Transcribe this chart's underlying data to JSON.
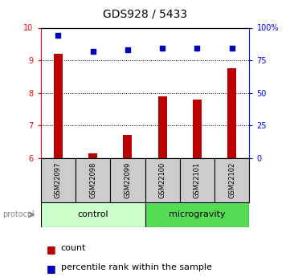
{
  "title": "GDS928 / 5433",
  "samples": [
    "GSM22097",
    "GSM22098",
    "GSM22099",
    "GSM22100",
    "GSM22101",
    "GSM22102"
  ],
  "count_values": [
    9.2,
    6.15,
    6.7,
    7.9,
    7.8,
    8.75
  ],
  "percentile_values": [
    94,
    82,
    83,
    84,
    84,
    84
  ],
  "ylim_left": [
    6,
    10
  ],
  "ylim_right": [
    0,
    100
  ],
  "yticks_left": [
    6,
    7,
    8,
    9,
    10
  ],
  "yticks_right": [
    0,
    25,
    50,
    75,
    100
  ],
  "ytick_labels_right": [
    "0",
    "25",
    "50",
    "75",
    "100%"
  ],
  "bar_color": "#bb0000",
  "dot_color": "#0000bb",
  "bar_width": 0.25,
  "ctrl_color": "#ccffcc",
  "micro_color": "#55dd55",
  "label_bg_color": "#cccccc",
  "grid_color": "black",
  "title_fontsize": 10,
  "tick_fontsize": 7,
  "sample_fontsize": 6,
  "proto_fontsize": 8,
  "legend_fontsize": 8
}
